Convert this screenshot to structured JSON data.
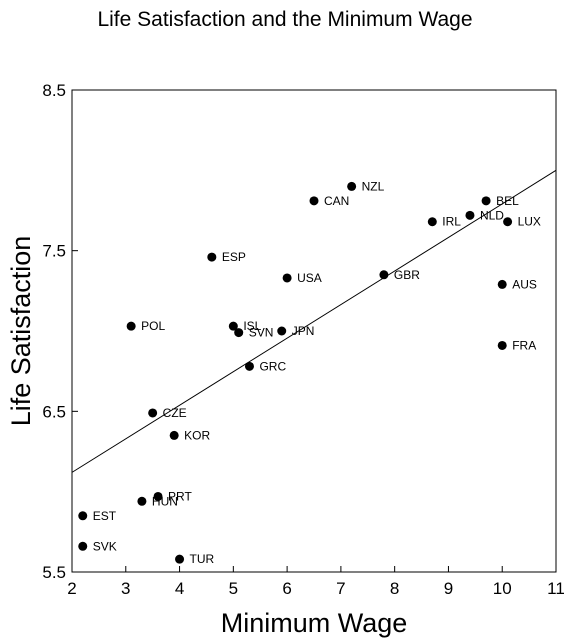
{
  "chart_data": {
    "type": "scatter",
    "title": "Life Satisfaction and the Minimum Wage",
    "xlabel": "Minimum Wage",
    "ylabel": "Life Satisfaction",
    "xlim": [
      2,
      11
    ],
    "ylim": [
      5.5,
      8.5
    ],
    "xticks": [
      2,
      3,
      4,
      5,
      6,
      7,
      8,
      9,
      10,
      11
    ],
    "xtick_labels": [
      "2",
      "3",
      "4",
      "5",
      "6",
      "7",
      "8",
      "9",
      "10",
      "11"
    ],
    "yticks": [
      5.5,
      6.5,
      7.5,
      8.5
    ],
    "ytick_labels": [
      "5.5",
      "6.5",
      "7.5",
      "8.5"
    ],
    "grid": false,
    "trendline": {
      "x": [
        2,
        11
      ],
      "y": [
        6.12,
        8.0
      ]
    },
    "points": [
      {
        "label": "NZL",
        "x": 7.2,
        "y": 7.9
      },
      {
        "label": "CAN",
        "x": 6.5,
        "y": 7.81
      },
      {
        "label": "BEL",
        "x": 9.7,
        "y": 7.81
      },
      {
        "label": "NLD",
        "x": 9.4,
        "y": 7.72
      },
      {
        "label": "IRL",
        "x": 8.7,
        "y": 7.68
      },
      {
        "label": "LUX",
        "x": 10.1,
        "y": 7.68
      },
      {
        "label": "ESP",
        "x": 4.6,
        "y": 7.46
      },
      {
        "label": "USA",
        "x": 6.0,
        "y": 7.33
      },
      {
        "label": "GBR",
        "x": 7.8,
        "y": 7.35
      },
      {
        "label": "AUS",
        "x": 10.0,
        "y": 7.29
      },
      {
        "label": "POL",
        "x": 3.1,
        "y": 7.03
      },
      {
        "label": "ISL",
        "x": 5.0,
        "y": 7.03
      },
      {
        "label": "SVN",
        "x": 5.1,
        "y": 6.99
      },
      {
        "label": "JPN",
        "x": 5.9,
        "y": 7.0
      },
      {
        "label": "FRA",
        "x": 10.0,
        "y": 6.91
      },
      {
        "label": "GRC",
        "x": 5.3,
        "y": 6.78
      },
      {
        "label": "CZE",
        "x": 3.5,
        "y": 6.49
      },
      {
        "label": "KOR",
        "x": 3.9,
        "y": 6.35
      },
      {
        "label": "PRT",
        "x": 3.6,
        "y": 5.97
      },
      {
        "label": "HUN",
        "x": 3.3,
        "y": 5.94
      },
      {
        "label": "EST",
        "x": 2.2,
        "y": 5.85
      },
      {
        "label": "SVK",
        "x": 2.2,
        "y": 5.66
      },
      {
        "label": "TUR",
        "x": 4.0,
        "y": 5.58
      }
    ]
  }
}
